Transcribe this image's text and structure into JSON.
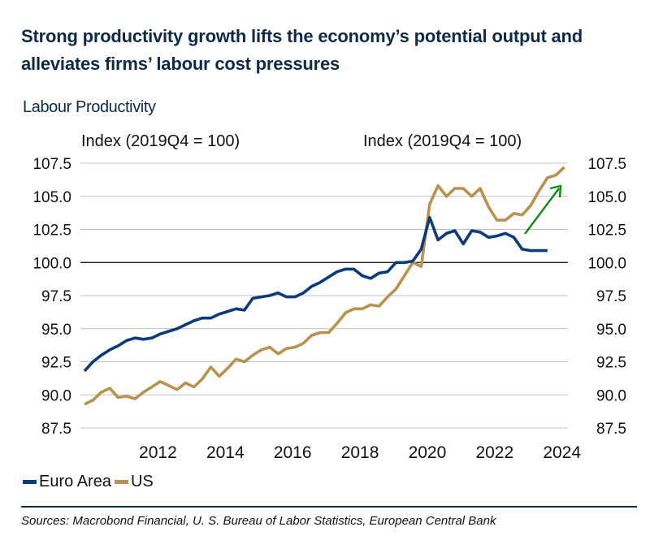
{
  "title": "Strong productivity growth lifts the economy’s potential output and alleviates firms’ labour cost pressures",
  "subtitle": "Labour Productivity",
  "left_axis_unit": "Index (2019Q4 = 100)",
  "right_axis_unit": "Index (2019Q4 = 100)",
  "sources": "Sources: Macrobond Financial, U. S. Bureau of Labor Statistics, European Central Bank",
  "colors": {
    "euro_area": "#0c3b7a",
    "us": "#b8924e",
    "arrow": "#118a11",
    "gridline": "#c0c0c0",
    "baseline": "#000000",
    "text": "#0e2a47"
  },
  "chart_data": {
    "type": "line",
    "title": "Labour Productivity",
    "xlabel": "",
    "ylabel": "Index (2019Q4 = 100)",
    "ylabel_right": "Index (2019Q4 = 100)",
    "ylim": [
      87.5,
      107.5
    ],
    "yticks": [
      "107.5",
      "105.0",
      "102.5",
      "100.0",
      "97.5",
      "95.0",
      "92.5",
      "90.0",
      "87.5"
    ],
    "ytick_values": [
      107.5,
      105.0,
      102.5,
      100.0,
      97.5,
      95.0,
      92.5,
      90.0,
      87.5
    ],
    "xticks": [
      "2012",
      "2014",
      "2016",
      "2018",
      "2020",
      "2022",
      "2024"
    ],
    "xtick_years": [
      2012,
      2014,
      2016,
      2018,
      2020,
      2022,
      2024
    ],
    "x_start": "2010Q1",
    "frequency": "quarterly",
    "grid": true,
    "reference_line": 100.0,
    "legend_position": "bottom-left",
    "annotation": "green upward arrow indicating rising US productivity (2023–2024)",
    "series": [
      {
        "name": "Euro Area",
        "values": [
          91.8,
          92.5,
          93.0,
          93.4,
          93.7,
          94.1,
          94.3,
          94.2,
          94.3,
          94.6,
          94.8,
          95.0,
          95.3,
          95.6,
          95.8,
          95.8,
          96.1,
          96.3,
          96.5,
          96.4,
          97.3,
          97.4,
          97.5,
          97.7,
          97.4,
          97.4,
          97.7,
          98.2,
          98.5,
          98.9,
          99.3,
          99.5,
          99.5,
          99.0,
          98.8,
          99.2,
          99.3,
          100.0,
          100.0,
          100.1,
          101.0,
          103.4,
          101.7,
          102.2,
          102.4,
          101.4,
          102.4,
          102.3,
          101.9,
          102.0,
          102.2,
          101.9,
          101.0,
          100.9,
          100.9,
          100.9
        ]
      },
      {
        "name": "US",
        "values": [
          89.3,
          89.6,
          90.2,
          90.5,
          89.8,
          89.9,
          89.7,
          90.2,
          90.6,
          91.0,
          90.7,
          90.4,
          90.9,
          90.6,
          91.2,
          92.1,
          91.4,
          92.0,
          92.7,
          92.5,
          93.0,
          93.4,
          93.6,
          93.1,
          93.5,
          93.6,
          93.9,
          94.5,
          94.7,
          94.7,
          95.4,
          96.2,
          96.5,
          96.5,
          96.8,
          96.7,
          97.4,
          98.0,
          99.0,
          100.0,
          99.7,
          104.4,
          105.8,
          105.0,
          105.6,
          105.6,
          105.0,
          105.6,
          104.2,
          103.2,
          103.2,
          103.7,
          103.6,
          104.3,
          105.4,
          106.4,
          106.6,
          107.2
        ]
      }
    ]
  },
  "legend": [
    {
      "label": "Euro Area",
      "series": "euro_area"
    },
    {
      "label": "US",
      "series": "us"
    }
  ]
}
